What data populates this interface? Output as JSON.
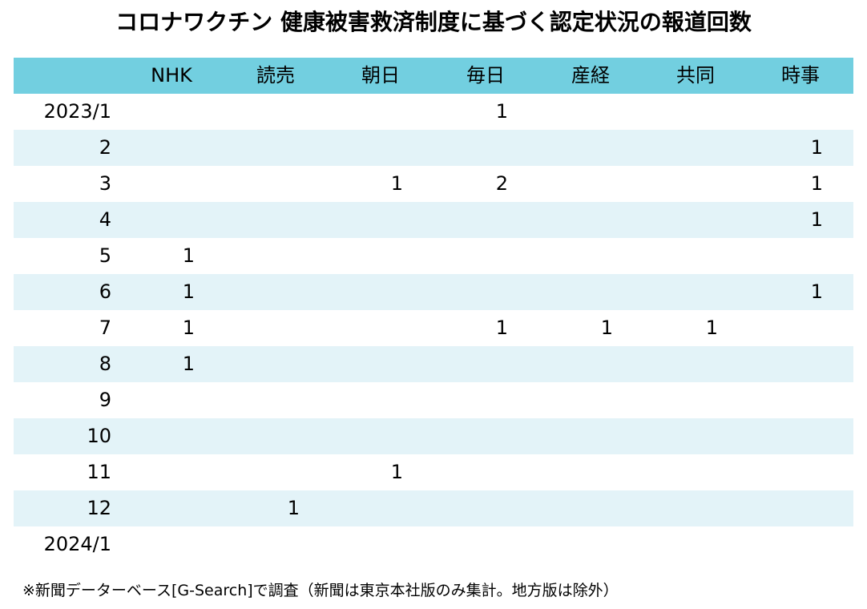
{
  "title": "コロナワクチン 健康被害救済制度に基づく認定状況の報道回数",
  "footnote": "※新聞データーベース[G-Search]で調査（新聞は東京本社版のみ集計。地方版は除外）",
  "colors": {
    "header_bg": "#72cfe0",
    "band_bg": "#e3f3f8",
    "text": "#000000"
  },
  "chart_data": {
    "type": "table",
    "title": "コロナワクチン 健康被害救済制度に基づく認定状況の報道回数",
    "columns": [
      "NHK",
      "読売",
      "朝日",
      "毎日",
      "産経",
      "共同",
      "時事"
    ],
    "rows": [
      {
        "label": "2023/1",
        "values": [
          "",
          "",
          "",
          "1",
          "",
          "",
          ""
        ]
      },
      {
        "label": "2",
        "values": [
          "",
          "",
          "",
          "",
          "",
          "",
          "1"
        ]
      },
      {
        "label": "3",
        "values": [
          "",
          "",
          "1",
          "2",
          "",
          "",
          "1"
        ]
      },
      {
        "label": "4",
        "values": [
          "",
          "",
          "",
          "",
          "",
          "",
          "1"
        ]
      },
      {
        "label": "5",
        "values": [
          "1",
          "",
          "",
          "",
          "",
          "",
          ""
        ]
      },
      {
        "label": "6",
        "values": [
          "1",
          "",
          "",
          "",
          "",
          "",
          "1"
        ]
      },
      {
        "label": "7",
        "values": [
          "1",
          "",
          "",
          "1",
          "1",
          "1",
          ""
        ]
      },
      {
        "label": "8",
        "values": [
          "1",
          "",
          "",
          "",
          "",
          "",
          ""
        ]
      },
      {
        "label": "9",
        "values": [
          "",
          "",
          "",
          "",
          "",
          "",
          ""
        ]
      },
      {
        "label": "10",
        "values": [
          "",
          "",
          "",
          "",
          "",
          "",
          ""
        ]
      },
      {
        "label": "11",
        "values": [
          "",
          "",
          "1",
          "",
          "",
          "",
          ""
        ]
      },
      {
        "label": "12",
        "values": [
          "",
          "1",
          "",
          "",
          "",
          "",
          ""
        ]
      },
      {
        "label": "2024/1",
        "values": [
          "",
          "",
          "",
          "",
          "",
          "",
          ""
        ]
      }
    ],
    "note": "※新聞データーベース[G-Search]で調査（新聞は東京本社版のみ集計。地方版は除外）"
  }
}
